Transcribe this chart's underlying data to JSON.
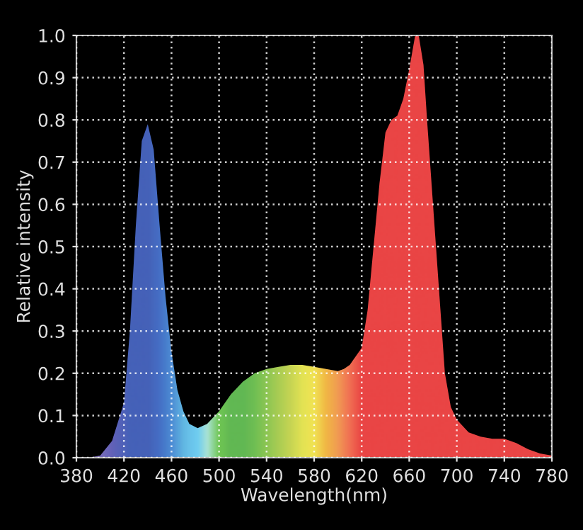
{
  "chart_data": {
    "type": "area",
    "xlabel": "Wavelength(nm)",
    "ylabel": "Relative intensity",
    "x": [
      380,
      390,
      400,
      410,
      420,
      425,
      430,
      435,
      440,
      445,
      450,
      455,
      460,
      465,
      470,
      475,
      482,
      490,
      500,
      510,
      520,
      530,
      540,
      550,
      560,
      570,
      580,
      590,
      600,
      605,
      610,
      620,
      625,
      630,
      635,
      640,
      645,
      650,
      655,
      660,
      665,
      668,
      672,
      675,
      680,
      685,
      690,
      695,
      700,
      710,
      720,
      730,
      740,
      750,
      760,
      770,
      780
    ],
    "series": [
      {
        "values": [
          0,
          0,
          0.005,
          0.04,
          0.13,
          0.3,
          0.55,
          0.75,
          0.79,
          0.73,
          0.55,
          0.38,
          0.25,
          0.16,
          0.11,
          0.08,
          0.07,
          0.08,
          0.11,
          0.15,
          0.18,
          0.2,
          0.21,
          0.215,
          0.22,
          0.22,
          0.215,
          0.21,
          0.205,
          0.21,
          0.22,
          0.26,
          0.35,
          0.5,
          0.65,
          0.77,
          0.8,
          0.81,
          0.85,
          0.92,
          1.0,
          1.0,
          0.93,
          0.8,
          0.6,
          0.4,
          0.2,
          0.12,
          0.09,
          0.06,
          0.05,
          0.045,
          0.045,
          0.035,
          0.02,
          0.01,
          0.005
        ],
        "colors": [
          "#7a5fb0",
          "#7a5fb0",
          "#6a5cb0",
          "#5050b0",
          "#3a50b0",
          "#3050b0",
          "#3050b0",
          "#3050b0",
          "#3050b0",
          "#3058b8",
          "#3060c0",
          "#3470c8",
          "#3a80d0",
          "#4498d8",
          "#50b0e0",
          "#58bce8",
          "#60c8f0",
          "#a0e0d0",
          "#60c040",
          "#50b040",
          "#50b040",
          "#60b840",
          "#80c040",
          "#a0c840",
          "#c0d040",
          "#e0e040",
          "#f0e040",
          "#f0b030",
          "#f09040",
          "#f07840",
          "#f06040",
          "#e83030",
          "#e83030",
          "#e83030",
          "#e83030",
          "#e83030",
          "#e83030",
          "#e83030",
          "#e83030",
          "#e83030",
          "#e83030",
          "#e83030",
          "#e83030",
          "#e83030",
          "#e83030",
          "#e83030",
          "#e83030",
          "#e83030",
          "#e83030",
          "#e83030",
          "#e83030",
          "#e83030",
          "#e83030",
          "#e83030",
          "#e83030",
          "#e83030",
          "#e83030"
        ]
      }
    ],
    "xlim": [
      380,
      780
    ],
    "ylim": [
      0,
      1.0
    ],
    "xticks": [
      380,
      420,
      460,
      500,
      540,
      580,
      620,
      660,
      700,
      740,
      780
    ],
    "yticks": [
      {
        "value": 0,
        "label": "0.0"
      },
      {
        "value": 0.1,
        "label": "0.1"
      },
      {
        "value": 0.2,
        "label": "0.2"
      },
      {
        "value": 0.3,
        "label": "0.3"
      },
      {
        "value": 0.4,
        "label": "0.4"
      },
      {
        "value": 0.5,
        "label": "0.5"
      },
      {
        "value": 0.6,
        "label": "0.6"
      },
      {
        "value": 0.7,
        "label": "0.7"
      },
      {
        "value": 0.8,
        "label": "0.8"
      },
      {
        "value": 0.9,
        "label": "0.9"
      },
      {
        "value": 1.0,
        "label": "1.0"
      }
    ],
    "grid": true
  }
}
